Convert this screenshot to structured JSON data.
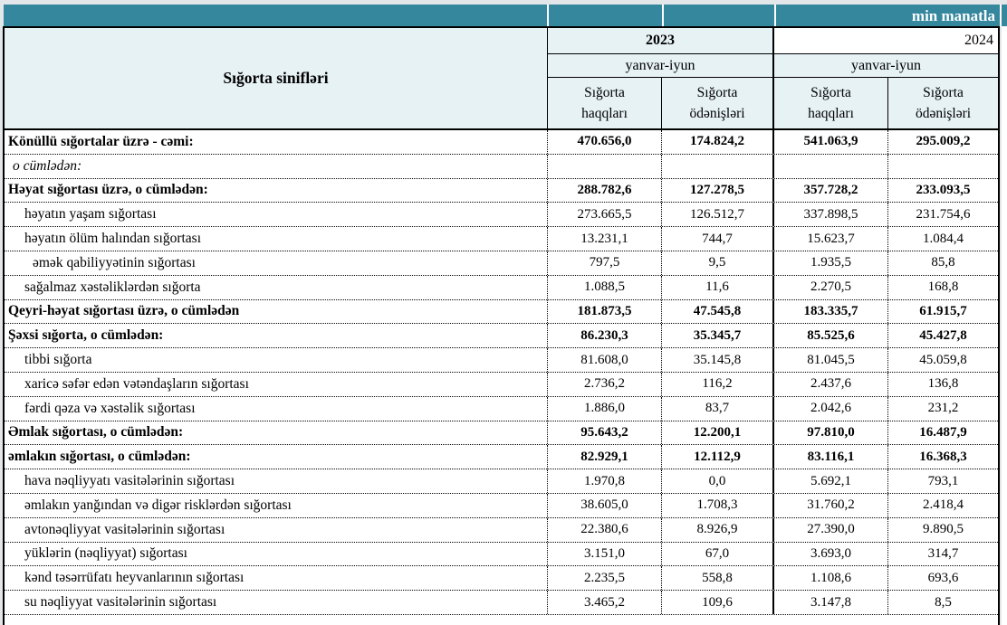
{
  "colors": {
    "accent_teal": "#35879E",
    "header_fill": "#E7F2F5",
    "unit_text": "#FFFFFF"
  },
  "unit_bar": {
    "label": "min manatla"
  },
  "table": {
    "class_header": "Sığorta sinifləri",
    "year_groups": [
      {
        "year": "2023",
        "period": "yanvar-iyun",
        "col1": "Sığorta haqqları",
        "col2": "Sığorta ödənişləri"
      },
      {
        "year": "2024",
        "period": "yanvar-iyun",
        "col1": "Sığorta haqqları",
        "col2": "Sığorta ödənişləri"
      }
    ],
    "rows": [
      {
        "label": "Könüllü sığortalar üzrə - cəmi:",
        "style": "bold",
        "indent": 0,
        "values": [
          "470.656,0",
          "174.824,2",
          "541.063,9",
          "295.009,2"
        ]
      },
      {
        "label": "o cümlədən:",
        "style": "italic",
        "indent": 1,
        "values": [
          "",
          "",
          "",
          ""
        ]
      },
      {
        "label": "Həyat sığortası üzrə, o cümlədən:",
        "style": "bold",
        "indent": 0,
        "values": [
          "288.782,6",
          "127.278,5",
          "357.728,2",
          "233.093,5"
        ]
      },
      {
        "label": "həyatın yaşam sığortası",
        "style": "normal",
        "indent": 2,
        "values": [
          "273.665,5",
          "126.512,7",
          "337.898,5",
          "231.754,6"
        ]
      },
      {
        "label": "həyatın ölüm halından sığortası",
        "style": "normal",
        "indent": 2,
        "values": [
          "13.231,1",
          "744,7",
          "15.623,7",
          "1.084,4"
        ]
      },
      {
        "label": "əmək qabiliyyətinin sığortası",
        "style": "normal",
        "indent": 3,
        "values": [
          "797,5",
          "9,5",
          "1.935,5",
          "85,8"
        ]
      },
      {
        "label": "sağalmaz xəstəliklərdən sığorta",
        "style": "normal",
        "indent": 2,
        "values": [
          "1.088,5",
          "11,6",
          "2.270,5",
          "168,8"
        ]
      },
      {
        "label": "Qeyri-həyat sığortası üzrə, o cümlədən",
        "style": "bold",
        "indent": 0,
        "values": [
          "181.873,5",
          "47.545,8",
          "183.335,7",
          "61.915,7"
        ]
      },
      {
        "label": "Şəxsi sığorta,  o cümlədən:",
        "style": "bold",
        "indent": 0,
        "values": [
          "86.230,3",
          "35.345,7",
          "85.525,6",
          "45.427,8"
        ]
      },
      {
        "label": "tibbi sığorta",
        "style": "normal",
        "indent": 2,
        "values": [
          "81.608,0",
          "35.145,8",
          "81.045,5",
          "45.059,8"
        ]
      },
      {
        "label": "xaricə səfər edən vətəndaşların sığortası",
        "style": "normal",
        "indent": 2,
        "values": [
          "2.736,2",
          "116,2",
          "2.437,6",
          "136,8"
        ]
      },
      {
        "label": "fərdi qəza və xəstəlik sığortası",
        "style": "normal",
        "indent": 2,
        "values": [
          "1.886,0",
          "83,7",
          "2.042,6",
          "231,2"
        ]
      },
      {
        "label": "Əmlak sığortası, o cümlədən:",
        "style": "bold",
        "indent": 0,
        "values": [
          "95.643,2",
          "12.200,1",
          "97.810,0",
          "16.487,9"
        ]
      },
      {
        "label": "əmlakın sığortası,  o cümlədən:",
        "style": "bold",
        "indent": 0,
        "values": [
          "82.929,1",
          "12.112,9",
          "83.116,1",
          "16.368,3"
        ]
      },
      {
        "label": "hava nəqliyyatı vasitələrinin sığortası",
        "style": "normal",
        "indent": 2,
        "values": [
          "1.970,8",
          "0,0",
          "5.692,1",
          "793,1"
        ]
      },
      {
        "label": "əmlakın yanğından və digər risklərdən sığortası",
        "style": "normal",
        "indent": 2,
        "values": [
          "38.605,0",
          "1.708,3",
          "31.760,2",
          "2.418,4"
        ]
      },
      {
        "label": "avtonəqliyyat vasitələrinin sığortası",
        "style": "normal",
        "indent": 2,
        "values": [
          "22.380,6",
          "8.926,9",
          "27.390,0",
          "9.890,5"
        ]
      },
      {
        "label": "yüklərin (nəqliyyat) sığortası",
        "style": "normal",
        "indent": 2,
        "values": [
          "3.151,0",
          "67,0",
          "3.693,0",
          "314,7"
        ]
      },
      {
        "label": "kənd təsərrüfatı heyvanlarının sığortası",
        "style": "normal",
        "indent": 2,
        "values": [
          "2.235,5",
          "558,8",
          "1.108,6",
          "693,6"
        ]
      },
      {
        "label": "su nəqliyyat vasitələrinin sığortası",
        "style": "normal",
        "indent": 2,
        "values": [
          "3.465,2",
          "109,6",
          "3.147,8",
          "8,5"
        ]
      }
    ]
  }
}
